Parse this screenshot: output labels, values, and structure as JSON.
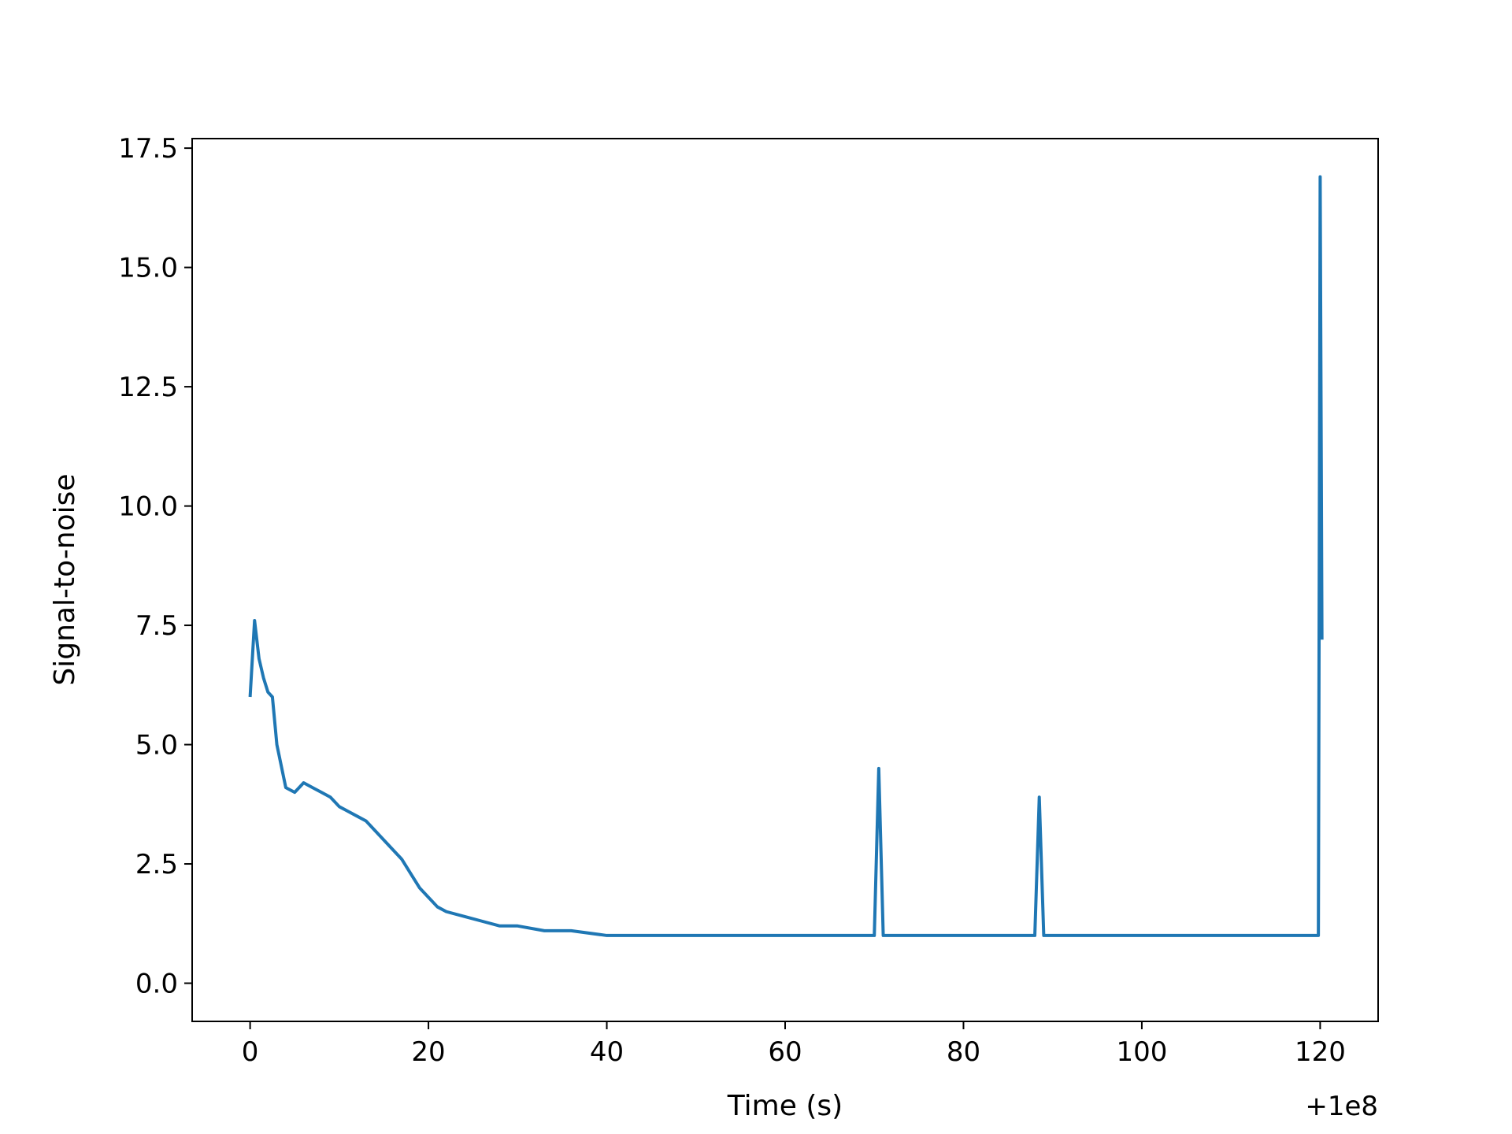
{
  "chart_data": {
    "type": "line",
    "title": "",
    "xlabel": "Time (s)",
    "ylabel": "Signal-to-noise",
    "x_offset_label": "+1e8",
    "xlim": [
      -6.5,
      126.5
    ],
    "ylim": [
      -0.8,
      17.7
    ],
    "x_ticks": [
      0,
      20,
      40,
      60,
      80,
      100,
      120
    ],
    "x_tick_labels": [
      "0",
      "20",
      "40",
      "60",
      "80",
      "100",
      "120"
    ],
    "y_ticks": [
      0,
      2.5,
      5,
      7.5,
      10,
      12.5,
      15,
      17.5
    ],
    "y_tick_labels": [
      "0.0",
      "2.5",
      "5.0",
      "7.5",
      "10.0",
      "12.5",
      "15.0",
      "17.5"
    ],
    "grid": false,
    "legend": "none",
    "series": [
      {
        "color": "#1f77b4",
        "x": [
          0,
          0.5,
          1,
          1.5,
          2,
          2.5,
          3,
          4,
          5,
          6,
          7,
          8,
          9,
          10,
          11,
          12,
          13,
          14,
          15,
          16,
          17,
          18,
          19,
          20,
          21,
          22,
          24,
          26,
          28,
          30,
          33,
          36,
          40,
          45,
          50,
          55,
          60,
          65,
          70,
          70.5,
          71,
          75,
          80,
          85,
          88,
          88.5,
          89,
          95,
          100,
          105,
          110,
          112,
          115,
          118,
          119,
          119.6,
          119.8,
          120,
          120.2
        ],
        "y": [
          6.0,
          7.6,
          6.8,
          6.4,
          6.1,
          6.0,
          5.0,
          4.1,
          4.0,
          4.2,
          4.1,
          4.0,
          3.9,
          3.7,
          3.6,
          3.5,
          3.4,
          3.2,
          3.0,
          2.8,
          2.6,
          2.3,
          2.0,
          1.8,
          1.6,
          1.5,
          1.4,
          1.3,
          1.2,
          1.2,
          1.1,
          1.1,
          1.0,
          1.0,
          1.0,
          1.0,
          1.0,
          1.0,
          1.0,
          4.5,
          1.0,
          1.0,
          1.0,
          1.0,
          1.0,
          3.9,
          1.0,
          1.0,
          1.0,
          1.0,
          1.0,
          1.0,
          1.0,
          1.0,
          1.0,
          1.0,
          1.0,
          16.9,
          7.2
        ]
      }
    ]
  }
}
